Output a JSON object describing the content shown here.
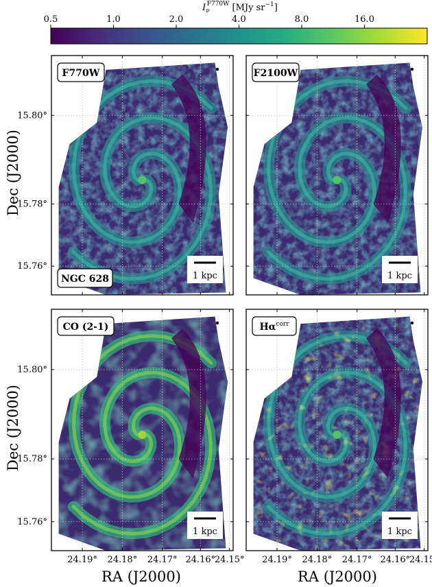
{
  "figure": {
    "colorbar": {
      "title_main": "I",
      "title_sub": "ν",
      "title_sup": "F770W",
      "title_unit": " [MJy sr",
      "title_unit_sup": "−1",
      "title_close": "]",
      "ticks": [
        "0.5",
        "1.0",
        "2.0",
        "4.0",
        "8.0",
        "16.0"
      ],
      "scale": "log",
      "range": [
        0.5,
        32
      ],
      "colormap": [
        "#440154",
        "#472c7a",
        "#3b518b",
        "#2c718e",
        "#21908d",
        "#27ad81",
        "#5cc863",
        "#aadc32",
        "#fde725"
      ]
    },
    "axes": {
      "ylabel": "Dec (J2000)",
      "xlabel": "RA (J2000)",
      "yticks": [
        "15.80°",
        "15.78°",
        "15.76°"
      ],
      "xticks": [
        "24.19°",
        "24.18°",
        "24.17°",
        "24.16°",
        "24.15°"
      ]
    },
    "panels": [
      {
        "id": "p1",
        "label": "F770W",
        "sup": "",
        "extra_label": "NGC 628",
        "scalebar": "1 kpc",
        "style": "mir"
      },
      {
        "id": "p2",
        "label": "F2100W",
        "sup": "",
        "extra_label": "",
        "scalebar": "1 kpc",
        "style": "mir"
      },
      {
        "id": "p3",
        "label": "CO (2-1)",
        "sup": "",
        "extra_label": "",
        "scalebar": "1 kpc",
        "style": "co"
      },
      {
        "id": "p4",
        "label": "Hα",
        "sup": "corr",
        "extra_label": "",
        "scalebar": "1 kpc",
        "style": "ha"
      }
    ]
  }
}
